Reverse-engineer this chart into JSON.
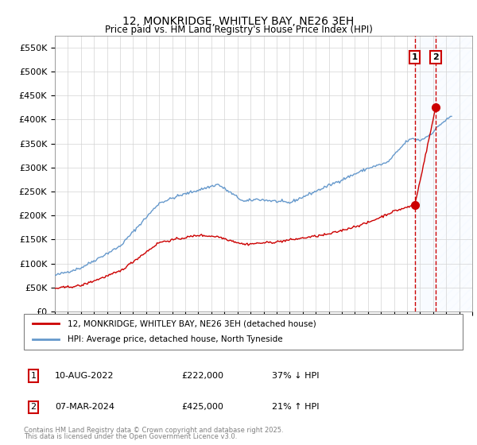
{
  "title": "12, MONKRIDGE, WHITLEY BAY, NE26 3EH",
  "subtitle": "Price paid vs. HM Land Registry's House Price Index (HPI)",
  "legend_property": "12, MONKRIDGE, WHITLEY BAY, NE26 3EH (detached house)",
  "legend_hpi": "HPI: Average price, detached house, North Tyneside",
  "transaction1": {
    "date": "10-AUG-2022",
    "price": 222000,
    "label": "1",
    "pct": "37%",
    "dir": "↓",
    "year": 2022.6
  },
  "transaction2": {
    "date": "07-MAR-2024",
    "price": 425000,
    "label": "2",
    "pct": "21%",
    "dir": "↑",
    "year": 2024.2
  },
  "footnote1": "Contains HM Land Registry data © Crown copyright and database right 2025.",
  "footnote2": "This data is licensed under the Open Government Licence v3.0.",
  "property_color": "#cc0000",
  "hpi_color": "#6699cc",
  "vline_color": "#cc0000",
  "bg_hatch_color": "#ddeeff",
  "ylim": [
    0,
    575000
  ],
  "xlim_start": 1995,
  "xlim_end": 2027
}
